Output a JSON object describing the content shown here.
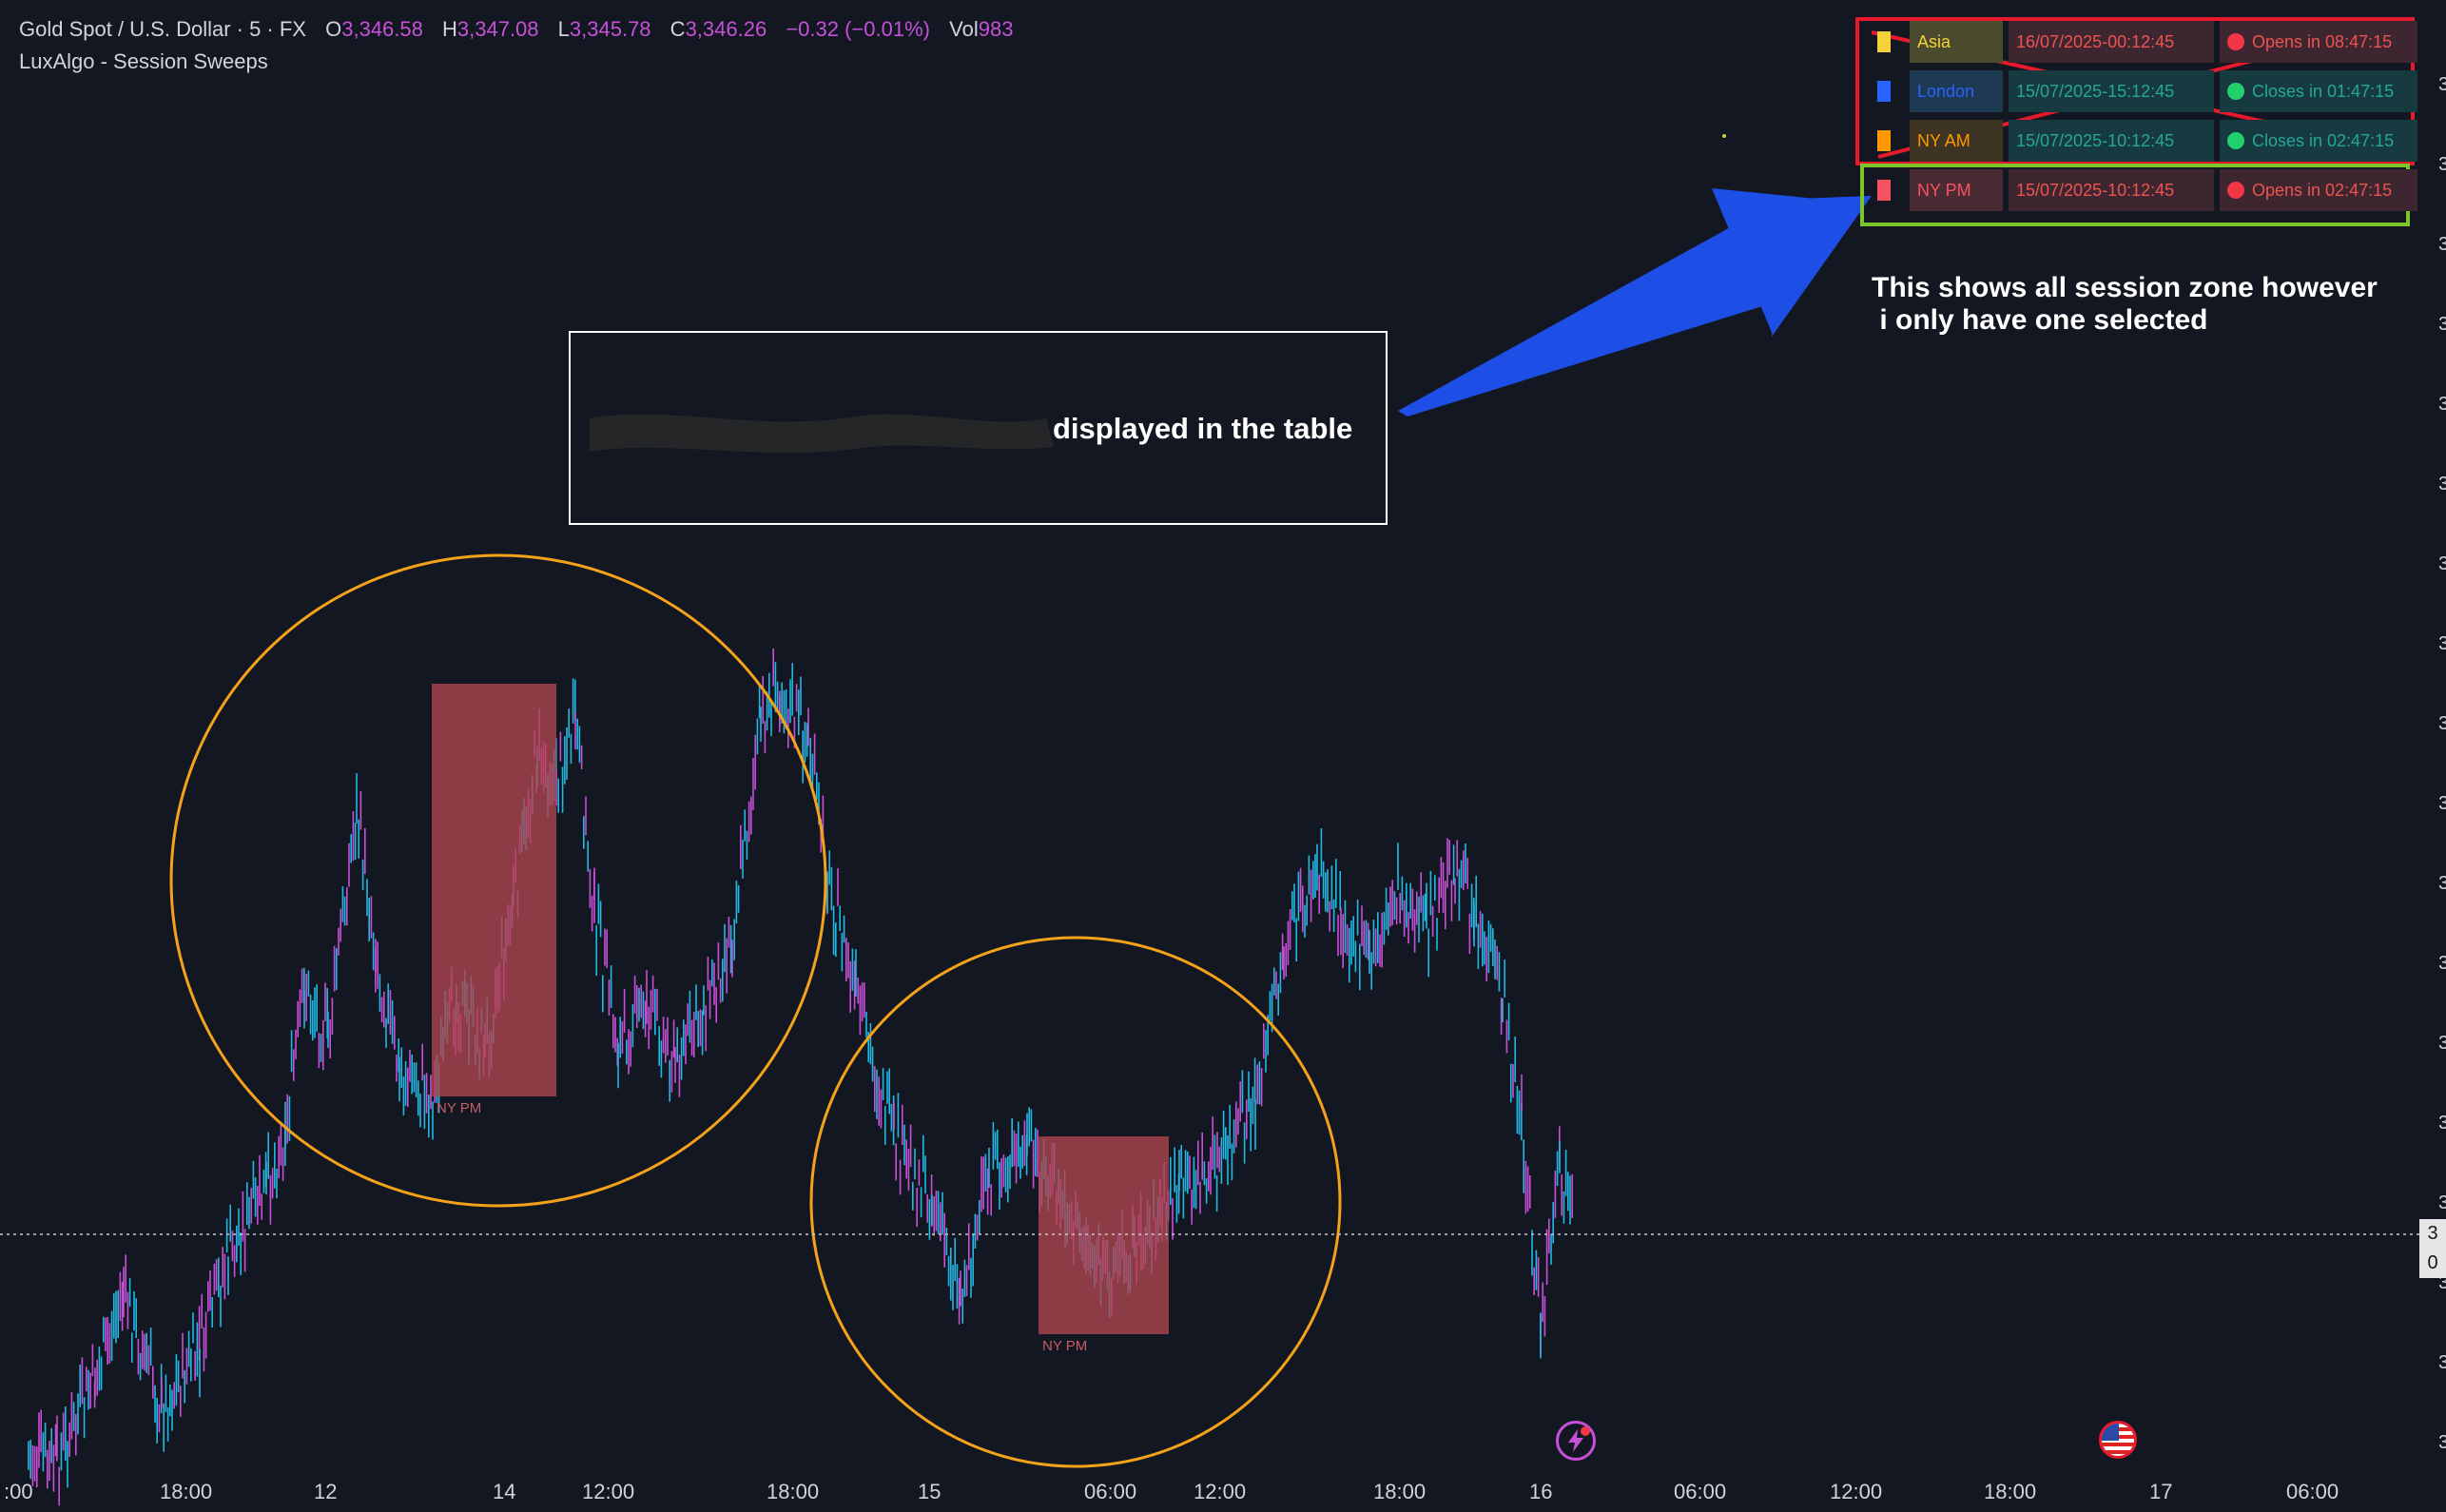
{
  "header": {
    "symbol": "Gold Spot / U.S. Dollar · 5 · FX",
    "open_label": "O",
    "open_value": "3,346.58",
    "high_label": "H",
    "high_value": "3,347.08",
    "low_label": "L",
    "low_value": "3,345.78",
    "close_label": "C",
    "close_value": "3,346.26",
    "change": "−0.32 (−0.01%)",
    "vol_label": "Vol",
    "vol_value": "983",
    "indicator": "LuxAlgo - Session Sweeps"
  },
  "session_table": [
    {
      "name": "Asia",
      "time": "16/07/2025-00:12:45",
      "status": "Opens in 08:47:15",
      "square_color": "#f5d23a",
      "name_color": "#f5d23a",
      "name_bg": "#4a4a2e",
      "time_color": "#ef5350",
      "time_bg": "#3d2630",
      "status_color": "#ef5350",
      "dot_color": "#f23645",
      "crossed": true
    },
    {
      "name": "London",
      "time": "15/07/2025-15:12:45",
      "status": "Closes in 01:47:15",
      "square_color": "#2962ff",
      "name_color": "#2962ff",
      "name_bg": "#1d3a52",
      "time_color": "#26a69a",
      "time_bg": "#163a3f",
      "status_color": "#26a69a",
      "dot_color": "#22d06e",
      "crossed": true
    },
    {
      "name": "NY AM",
      "time": "15/07/2025-10:12:45",
      "status": "Closes in 02:47:15",
      "square_color": "#ff9800",
      "name_color": "#ff9800",
      "name_bg": "#3d3423",
      "time_color": "#26a69a",
      "time_bg": "#163a3f",
      "status_color": "#26a69a",
      "dot_color": "#22d06e",
      "crossed": true
    },
    {
      "name": "NY PM",
      "time": "15/07/2025-10:12:45",
      "status": "Opens in 02:47:15",
      "square_color": "#f7525f",
      "name_color": "#f7525f",
      "name_bg": "#4a2a33",
      "time_color": "#ef5350",
      "time_bg": "#3d2630",
      "status_color": "#ef5350",
      "dot_color": "#f23645",
      "crossed": false
    }
  ],
  "annotations": {
    "callout_right": "This shows all session zone however\n i only have one selected",
    "callout_box": "displayed in the table",
    "session_label_1": "NY PM",
    "session_label_2": "NY PM"
  },
  "x_axis": [
    ":00",
    "18:00",
    "12",
    "14",
    "12:00",
    "18:00",
    "15",
    "06:00",
    "12:00",
    "18:00",
    "16",
    "06:00",
    "12:00",
    "18:00",
    "17",
    "06:00"
  ],
  "y_axis_right": [
    "3",
    "3",
    "3",
    "3",
    "3",
    "3",
    "3",
    "3",
    "3",
    "3",
    "3",
    "3",
    "3",
    "3",
    "3",
    "3",
    "3",
    "3"
  ],
  "price_tag": {
    "line1": "3",
    "line2": "0"
  },
  "colors": {
    "background": "#131722",
    "candle_up": "#22b8e3",
    "candle_down": "#c750d8",
    "session_box": "#b0454f",
    "circle": "#f5a21b",
    "cross_red": "#e8192c",
    "highlight_green": "#7cc62a",
    "arrow_blue": "#1d4fe6"
  },
  "icons": [
    "lightning-icon",
    "us-flag-icon"
  ]
}
